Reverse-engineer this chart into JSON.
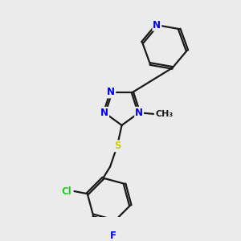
{
  "bg_color": "#ebebeb",
  "bond_color": "#1a1a1a",
  "bond_width": 1.6,
  "atom_colors": {
    "N": "#0000ee",
    "S": "#cccc00",
    "Cl": "#22cc22",
    "F": "#0000ee",
    "C": "#1a1a1a"
  },
  "font_size": 8.5
}
